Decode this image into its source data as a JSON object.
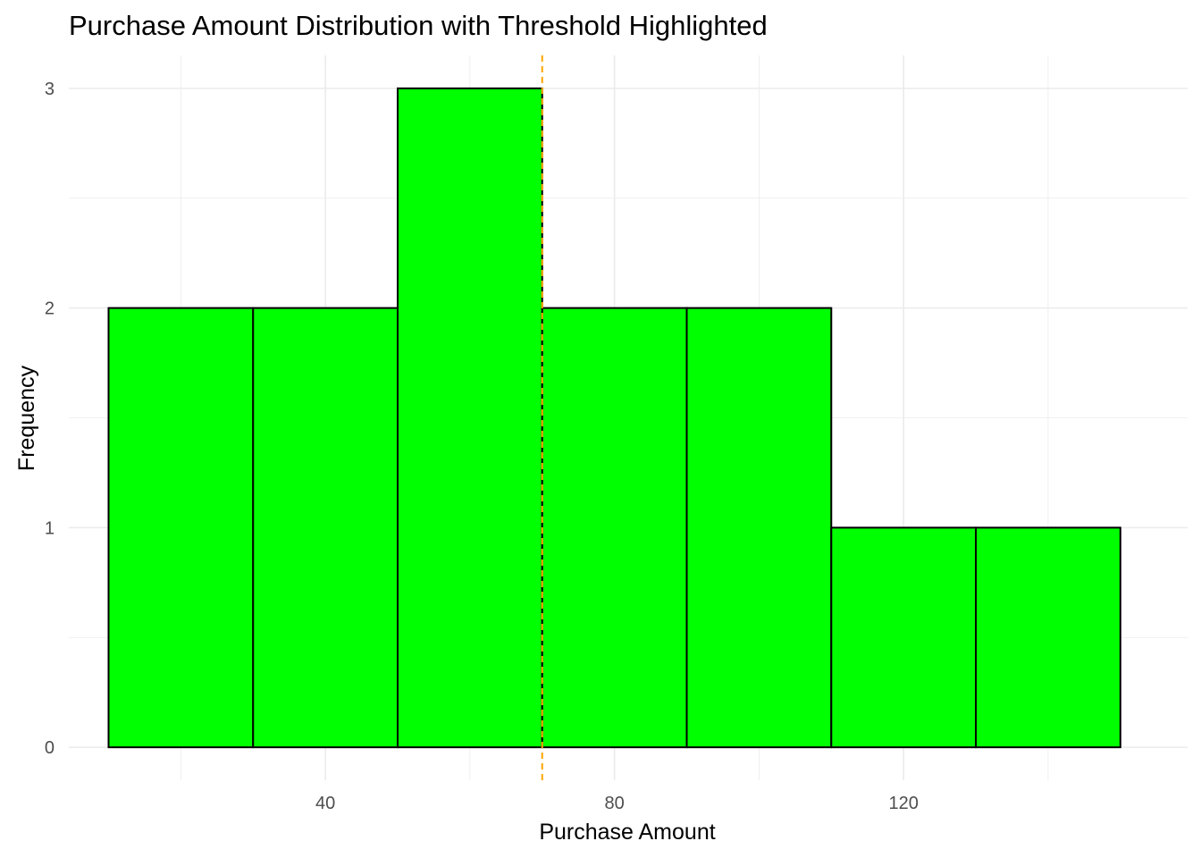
{
  "chart_data": {
    "type": "bar",
    "title": "Purchase Amount Distribution with Threshold Highlighted",
    "xlabel": "Purchase Amount",
    "ylabel": "Frequency",
    "bins": [
      {
        "start": 10,
        "end": 30,
        "count": 2
      },
      {
        "start": 30,
        "end": 50,
        "count": 2
      },
      {
        "start": 50,
        "end": 70,
        "count": 3
      },
      {
        "start": 70,
        "end": 90,
        "count": 2
      },
      {
        "start": 90,
        "end": 110,
        "count": 2
      },
      {
        "start": 110,
        "end": 130,
        "count": 1
      },
      {
        "start": 130,
        "end": 150,
        "count": 1
      }
    ],
    "threshold": 70,
    "xlim": [
      4.5,
      159.3
    ],
    "ylim": [
      -0.15,
      3.15
    ],
    "xticks": [
      40,
      80,
      120
    ],
    "yticks": [
      0,
      1,
      2,
      3
    ],
    "grid": true,
    "legend": "none",
    "colors": {
      "bar_fill": "#00ff00",
      "bar_outline": "#000000",
      "threshold_line": "#ffa500",
      "grid": "#ebebeb"
    }
  }
}
